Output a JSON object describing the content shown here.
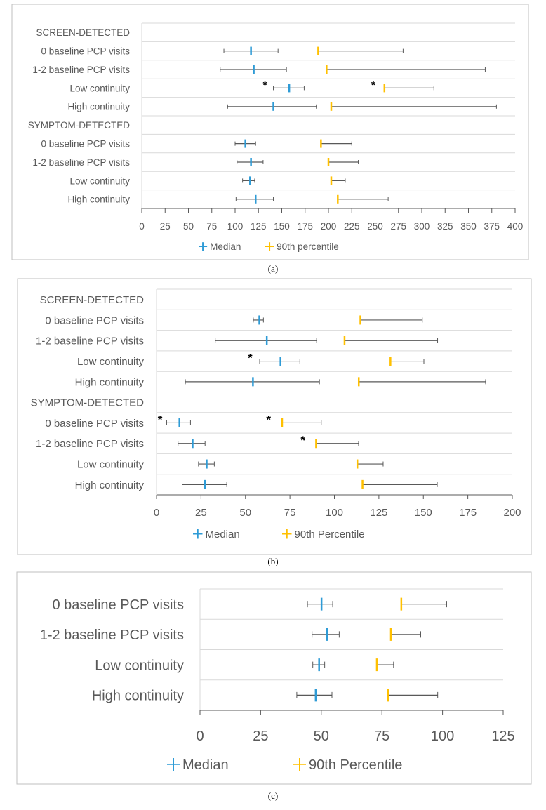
{
  "colors": {
    "median": "#2e9bd6",
    "p90": "#ffc000",
    "errorbar": "#595959",
    "grid": "#d9d9d9",
    "text": "#595959"
  },
  "chart_data": [
    {
      "type": "errorbar",
      "caption": "(a)",
      "categories": [
        "SCREEN-DETECTED",
        "0 baseline PCP visits",
        "1-2 baseline PCP visits",
        "Low continuity",
        "High continuity",
        "SYMPTOM-DETECTED",
        "0 baseline PCP visits",
        "1-2 baseline PCP visits",
        "Low continuity",
        "High continuity"
      ],
      "xlim": [
        0,
        400
      ],
      "xticks": [
        "0",
        "25",
        "50",
        "75",
        "100",
        "125",
        "150",
        "175",
        "200",
        "225",
        "250",
        "275",
        "300",
        "325",
        "350",
        "375",
        "400"
      ],
      "legend": [
        "Median",
        "90th percentile"
      ],
      "legend_position": "bottom",
      "series": [
        {
          "name": "Median",
          "values": [
            null,
            117,
            120,
            158,
            141,
            null,
            111,
            117,
            116,
            122
          ],
          "lower": [
            null,
            88,
            84,
            141,
            92,
            null,
            100,
            102,
            108,
            101
          ],
          "upper": [
            null,
            146,
            155,
            174,
            187,
            null,
            122,
            130,
            121,
            141
          ]
        },
        {
          "name": "90th percentile",
          "values": [
            null,
            189,
            198,
            260,
            203,
            null,
            192,
            200,
            203,
            210
          ],
          "upper": [
            null,
            280,
            368,
            313,
            380,
            null,
            225,
            232,
            218,
            264
          ]
        }
      ],
      "annotations": [
        {
          "text": "*",
          "row": 3,
          "x": 132
        },
        {
          "text": "*",
          "row": 3,
          "x": 248
        }
      ]
    },
    {
      "type": "errorbar",
      "caption": "(b)",
      "categories": [
        "SCREEN-DETECTED",
        "0 baseline PCP visits",
        "1-2 baseline PCP visits",
        "Low continuity",
        "High continuity",
        "SYMPTOM-DETECTED",
        "0 baseline PCP visits",
        "1-2 baseline PCP visits",
        "Low continuity",
        "High continuity"
      ],
      "xlim": [
        0,
        200
      ],
      "xticks": [
        "0",
        "25",
        "50",
        "75",
        "100",
        "125",
        "150",
        "175",
        "200"
      ],
      "legend": [
        "Median",
        "90th Percentile"
      ],
      "legend_position": "bottom",
      "series": [
        {
          "name": "Median",
          "values": [
            null,
            57.8,
            62,
            69.7,
            54.2,
            null,
            12.9,
            20.3,
            28.2,
            27.3
          ],
          "lower": [
            null,
            54.4,
            33,
            58,
            16.2,
            null,
            5.7,
            12.1,
            23.6,
            14.4
          ],
          "upper": [
            null,
            60.1,
            90,
            80.6,
            91.6,
            null,
            19.1,
            27.3,
            32.5,
            39.5
          ]
        },
        {
          "name": "90th Percentile",
          "values": [
            null,
            114.6,
            105.7,
            131.5,
            113.7,
            null,
            70.6,
            89.7,
            112.9,
            115.8
          ],
          "upper": [
            null,
            149.4,
            158,
            150.3,
            185,
            null,
            92.6,
            113.6,
            127.4,
            157.8
          ]
        }
      ],
      "annotations": [
        {
          "text": "*",
          "row": 3,
          "x": 52.6
        },
        {
          "text": "*",
          "row": 6,
          "x": 2
        },
        {
          "text": "*",
          "row": 6,
          "x": 63
        },
        {
          "text": "*",
          "row": 7,
          "x": 82.3
        }
      ]
    },
    {
      "type": "errorbar",
      "caption": "(c)",
      "categories": [
        "0 baseline PCP visits",
        "1-2 baseline PCP visits",
        "Low continuity",
        "High continuity"
      ],
      "xlim": [
        0,
        125
      ],
      "xticks": [
        "0",
        "25",
        "50",
        "75",
        "100",
        "125"
      ],
      "legend": [
        "Median",
        "90th Percentile"
      ],
      "legend_position": "bottom",
      "series": [
        {
          "name": "Median",
          "values": [
            50.1,
            52.3,
            49.1,
            47.7
          ],
          "lower": [
            44.3,
            46.2,
            46.5,
            39.9
          ],
          "upper": [
            54.7,
            57.4,
            51.4,
            54.4
          ]
        },
        {
          "name": "90th Percentile",
          "values": [
            83,
            78.7,
            72.9,
            77.5
          ],
          "upper": [
            101.7,
            91,
            79.8,
            98
          ]
        }
      ],
      "annotations": []
    }
  ]
}
